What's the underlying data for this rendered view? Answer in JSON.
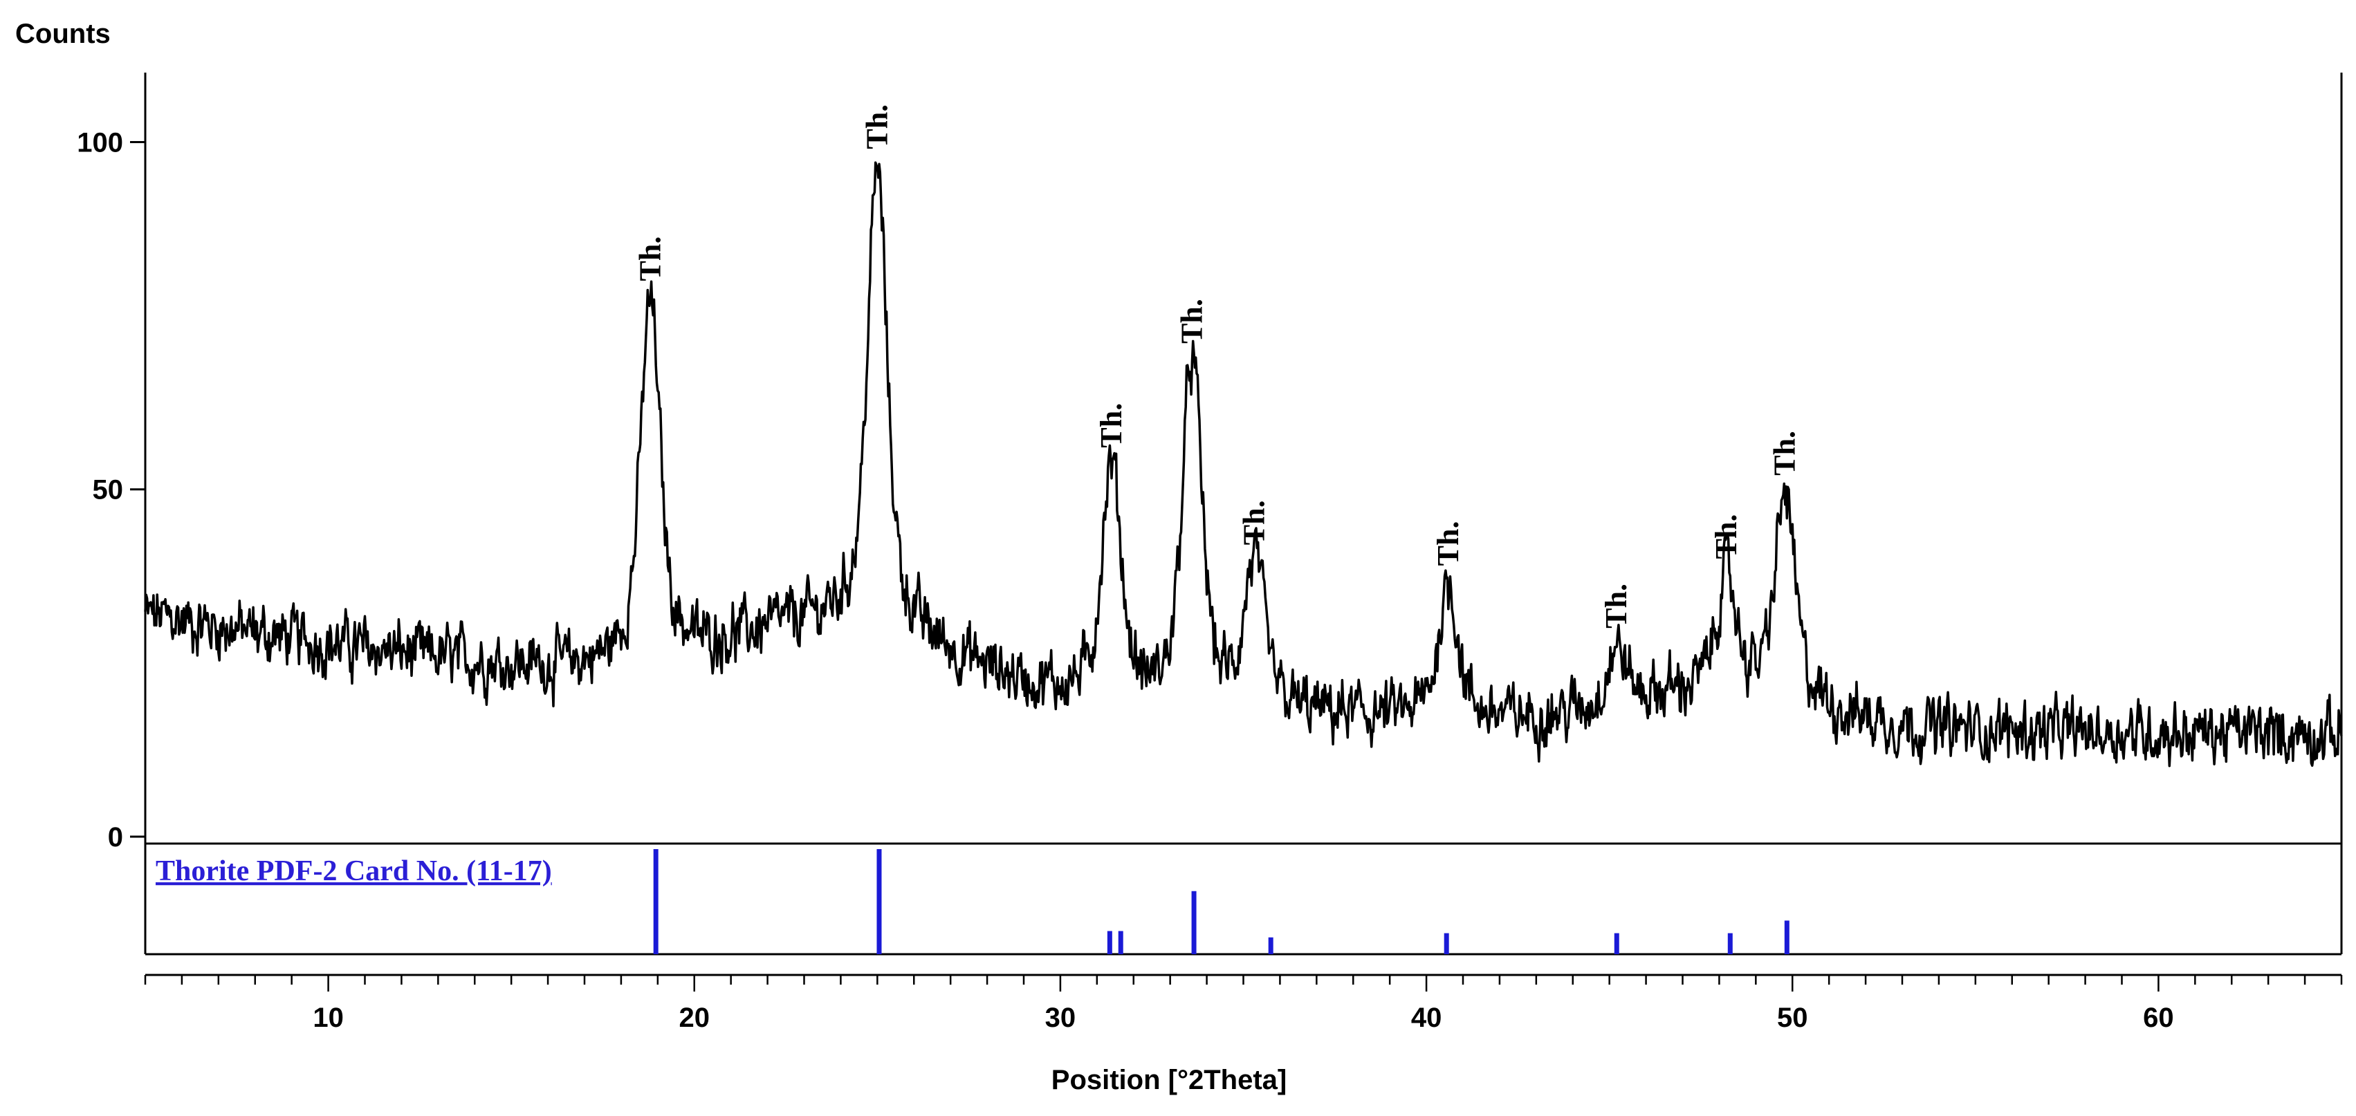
{
  "chart_data": {
    "type": "line",
    "ylabel": "Counts",
    "xlabel": "Position [°2Theta]",
    "xlim": [
      5,
      65
    ],
    "ylim": [
      0,
      110
    ],
    "x_ticks": [
      10,
      20,
      30,
      40,
      50,
      60
    ],
    "y_ticks": [
      0,
      50,
      100
    ],
    "grid": false,
    "colors": {
      "pattern": "#000000",
      "reference": "#1a1ad6",
      "reference_label": "#2b1fd6"
    },
    "background": {
      "start": 32,
      "end": 14
    },
    "peaks": [
      {
        "x": 18.8,
        "y": 77,
        "label": "Th."
      },
      {
        "x": 25.0,
        "y": 96,
        "label": "Th."
      },
      {
        "x": 31.4,
        "y": 53,
        "label": "Th."
      },
      {
        "x": 33.6,
        "y": 68,
        "label": "Th."
      },
      {
        "x": 35.3,
        "y": 39,
        "label": "Th."
      },
      {
        "x": 40.6,
        "y": 36,
        "label": "Th."
      },
      {
        "x": 45.2,
        "y": 27,
        "label": "Th."
      },
      {
        "x": 48.2,
        "y": 37,
        "label": "Th."
      },
      {
        "x": 49.8,
        "y": 49,
        "label": "Th."
      }
    ],
    "reference_pattern": {
      "name": "Thorite PDF-2 Card No. (11-17)",
      "lines": [
        {
          "x": 18.95,
          "intensity": 100
        },
        {
          "x": 25.05,
          "intensity": 100
        },
        {
          "x": 31.35,
          "intensity": 22
        },
        {
          "x": 31.65,
          "intensity": 22
        },
        {
          "x": 33.65,
          "intensity": 60
        },
        {
          "x": 35.75,
          "intensity": 16
        },
        {
          "x": 40.55,
          "intensity": 20
        },
        {
          "x": 45.2,
          "intensity": 20
        },
        {
          "x": 48.3,
          "intensity": 20
        },
        {
          "x": 49.85,
          "intensity": 32
        }
      ]
    }
  }
}
